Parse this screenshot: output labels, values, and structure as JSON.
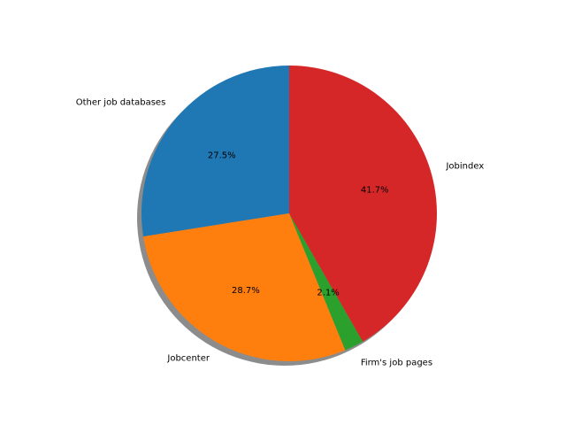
{
  "chart_data": {
    "type": "pie",
    "title": "",
    "shadow": true,
    "start_angle_deg": 90,
    "direction": "counterclockwise",
    "slices": [
      {
        "label": "Other job databases",
        "value": 27.5,
        "pct_label": "27.5%",
        "color": "#1f77b4"
      },
      {
        "label": "Jobcenter",
        "value": 28.7,
        "pct_label": "28.7%",
        "color": "#ff7f0e"
      },
      {
        "label": "Firm's job pages",
        "value": 2.1,
        "pct_label": "2.1%",
        "color": "#2ca02c"
      },
      {
        "label": "Jobindex",
        "value": 41.7,
        "pct_label": "41.7%",
        "color": "#d62728"
      }
    ]
  }
}
